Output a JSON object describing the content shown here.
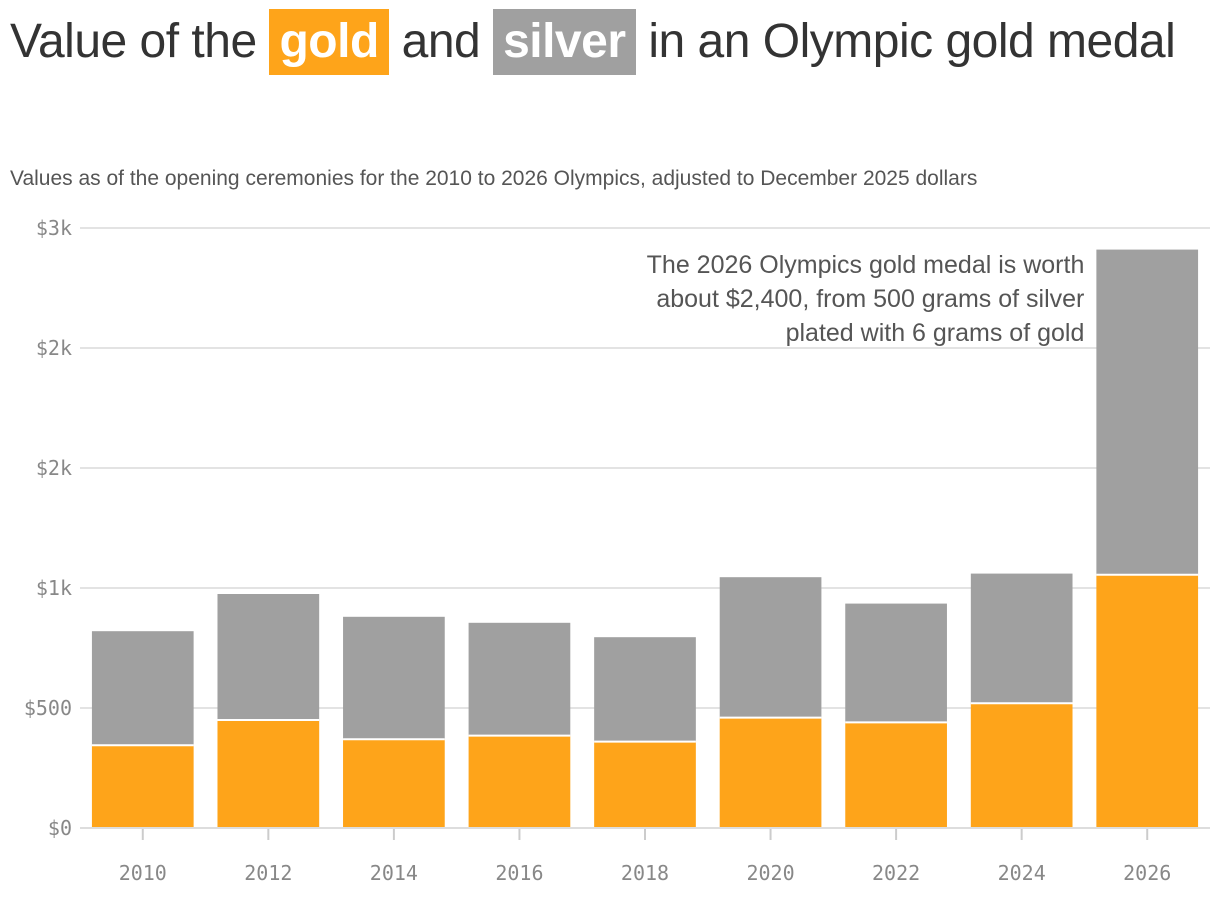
{
  "header": {
    "title_part1": "Value of the",
    "title_gold": "gold",
    "title_and": "and",
    "title_silver": "silver",
    "title_part2": "in an Olympic gold medal",
    "subtitle": "Values as of the opening ceremonies for the 2010 to 2026 Olympics, adjusted to December 2025 dollars"
  },
  "chart_data": {
    "type": "bar",
    "stacked": true,
    "categories": [
      "2010",
      "2012",
      "2014",
      "2016",
      "2018",
      "2020",
      "2022",
      "2024",
      "2026"
    ],
    "series": [
      {
        "name": "gold",
        "color": "#FEA41A",
        "values": [
          345,
          450,
          370,
          385,
          360,
          460,
          440,
          520,
          1055
        ]
      },
      {
        "name": "silver",
        "color": "#A0A0A0",
        "values": [
          475,
          525,
          510,
          470,
          435,
          585,
          495,
          540,
          1355
        ]
      }
    ],
    "y_ticks": [
      {
        "value": 0,
        "label": "$0"
      },
      {
        "value": 500,
        "label": "$500"
      },
      {
        "value": 1000,
        "label": "$1k"
      },
      {
        "value": 1500,
        "label": "$2k"
      },
      {
        "value": 2000,
        "label": "$2k"
      },
      {
        "value": 2500,
        "label": "$3k"
      }
    ],
    "ylim": [
      0,
      2500
    ],
    "grid": true,
    "annotation": {
      "target": "2026",
      "lines": [
        "The 2026 Olympics gold medal is worth",
        "about $2,400, from 500 grams of silver",
        "plated with 6 grams of gold"
      ]
    }
  }
}
